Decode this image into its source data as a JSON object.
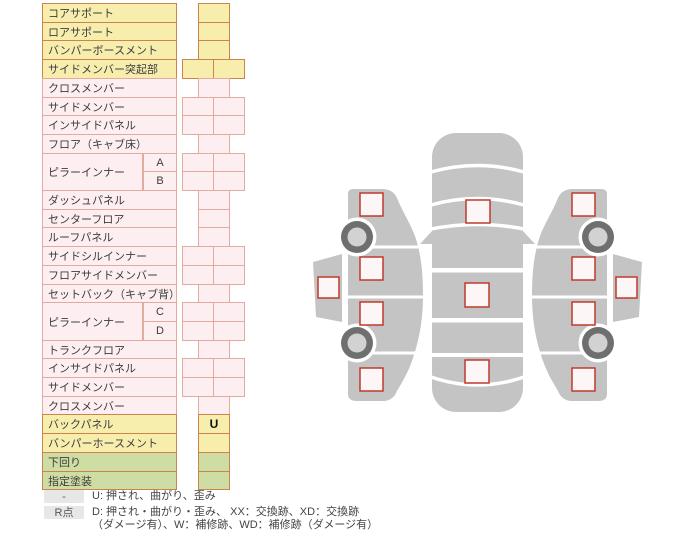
{
  "title": "vehicle frame damage check sheet",
  "colors": {
    "yellow_fill": "#f7eeae",
    "pink_fill": "#fdeff1",
    "green_fill": "#cedda3",
    "outer_border": "#c9854d",
    "pink_border": "#e3aa9e",
    "body_gray": "#c4c4c5",
    "wheel_ring": "#6e7070",
    "wheel_hub": "#d2d2d2",
    "checkbox_border": "#c0392b",
    "mark_text": "#111111"
  },
  "table": {
    "rows": [
      {
        "label": "コアサポート",
        "tone": "yellow",
        "cell": "single",
        "value": ""
      },
      {
        "label": "ロアサポート",
        "tone": "yellow",
        "cell": "single",
        "value": ""
      },
      {
        "label": "バンパーボースメント",
        "tone": "yellow",
        "cell": "single",
        "value": ""
      },
      {
        "label": "サイドメンバー突起部",
        "tone": "yellow",
        "cell": "double",
        "value": ""
      },
      {
        "label": "クロスメンバー",
        "tone": "pink",
        "cell": "single",
        "value": ""
      },
      {
        "label": "サイドメンバー",
        "tone": "pink",
        "cell": "double",
        "value": ""
      },
      {
        "label": "インサイドパネル",
        "tone": "pink",
        "cell": "double",
        "value": ""
      },
      {
        "label": "フロア（キャブ床）",
        "tone": "pink",
        "cell": "single",
        "value": ""
      },
      {
        "label": "ピラーインナー",
        "tone": "pink",
        "cell": "double",
        "sub": "A",
        "rowspan": 2,
        "value": ""
      },
      {
        "label": "",
        "tone": "pink",
        "cell": "double",
        "sub": "B",
        "merged": true,
        "value": ""
      },
      {
        "label": "ダッシュパネル",
        "tone": "pink",
        "cell": "single",
        "value": ""
      },
      {
        "label": "センターフロア",
        "tone": "pink",
        "cell": "single",
        "value": ""
      },
      {
        "label": "ルーフパネル",
        "tone": "pink",
        "cell": "single",
        "value": ""
      },
      {
        "label": "サイドシルインナー",
        "tone": "pink",
        "cell": "double",
        "value": ""
      },
      {
        "label": "フロアサイドメンバー",
        "tone": "pink",
        "cell": "double",
        "value": ""
      },
      {
        "label": "セットバック（キャブ背）",
        "tone": "pink",
        "cell": "single",
        "value": ""
      },
      {
        "label": "ピラーインナー",
        "tone": "pink",
        "cell": "double",
        "sub": "C",
        "rowspan": 2,
        "value": ""
      },
      {
        "label": "",
        "tone": "pink",
        "cell": "double",
        "sub": "D",
        "merged": true,
        "value": ""
      },
      {
        "label": "トランクフロア",
        "tone": "pink",
        "cell": "single",
        "value": ""
      },
      {
        "label": "インサイドパネル",
        "tone": "pink",
        "cell": "double",
        "value": ""
      },
      {
        "label": "サイドメンバー",
        "tone": "pink",
        "cell": "double",
        "value": ""
      },
      {
        "label": "クロスメンバー",
        "tone": "pink",
        "cell": "single",
        "value": ""
      },
      {
        "label": "バックパネル",
        "tone": "yellow",
        "cell": "single",
        "value": "U"
      },
      {
        "label": "バンパーホースメント",
        "tone": "yellow",
        "cell": "single",
        "value": ""
      },
      {
        "label": "下回り",
        "tone": "green",
        "cell": "single",
        "value": ""
      },
      {
        "label": "指定塗装",
        "tone": "green",
        "cell": "single",
        "value": ""
      }
    ]
  },
  "legend": {
    "rows": [
      {
        "badge": "-",
        "lines": [
          "U: 押され、曲がり、歪み"
        ]
      },
      {
        "badge": "R点",
        "lines": [
          "D: 押され・曲がり・歪み、 XX：交換跡、XD：交換跡",
          "（ダメージ有）、W：補修跡、WD：補修跡（ダメージ有）"
        ]
      }
    ]
  },
  "diagram": {
    "views": [
      "left-side-view",
      "top-view",
      "right-side-view"
    ],
    "checkpoint_count": 11,
    "marks_entered": []
  }
}
